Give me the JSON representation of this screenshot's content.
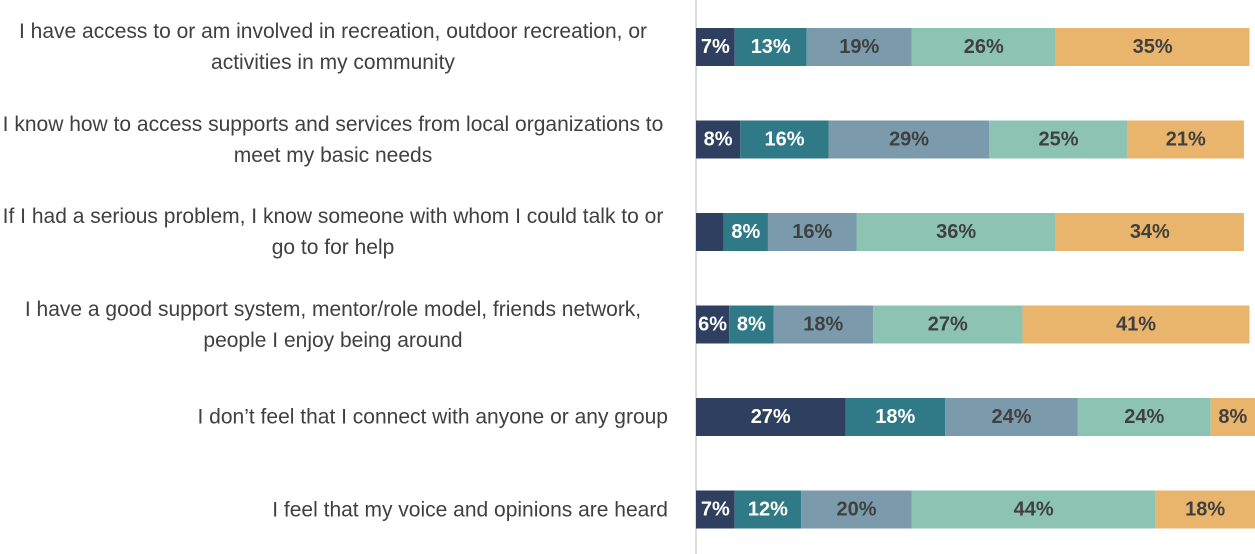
{
  "chart_data": {
    "type": "stacked-bar-horizontal",
    "categories": [
      "I have access to or am involved in recreation, outdoor recreation, or activities in my community",
      "I know how to access supports and services from local organizations to meet my basic needs",
      "If I had a serious problem, I know someone with whom I could talk to or go to for help",
      "I have a good support system, mentor/role model, friends network, people I enjoy being around",
      "I don’t feel that I connect with anyone or any group",
      "I feel that my voice and opinions are heard"
    ],
    "series": [
      {
        "color": "#2e3f5f",
        "values": [
          7,
          8,
          5,
          6,
          27,
          7
        ],
        "value_labels": [
          "7%",
          "8%",
          null,
          "6%",
          "27%",
          "7%"
        ]
      },
      {
        "color": "#2f7a86",
        "values": [
          13,
          16,
          8,
          8,
          18,
          12
        ],
        "value_labels": [
          "13%",
          "16%",
          "8%",
          "8%",
          "18%",
          "12%"
        ]
      },
      {
        "color": "#7b9bac",
        "values": [
          19,
          29,
          16,
          18,
          24,
          20
        ],
        "value_labels": [
          "19%",
          "29%",
          "16%",
          "18%",
          "24%",
          "20%"
        ]
      },
      {
        "color": "#8dc3b3",
        "values": [
          26,
          25,
          36,
          27,
          24,
          44
        ],
        "value_labels": [
          "26%",
          "25%",
          "36%",
          "27%",
          "24%",
          "44%"
        ]
      },
      {
        "color": "#e9b56c",
        "values": [
          35,
          21,
          34,
          41,
          8,
          18
        ],
        "value_labels": [
          "35%",
          "21%",
          "34%",
          "41%",
          "8%",
          "18%"
        ]
      }
    ]
  }
}
